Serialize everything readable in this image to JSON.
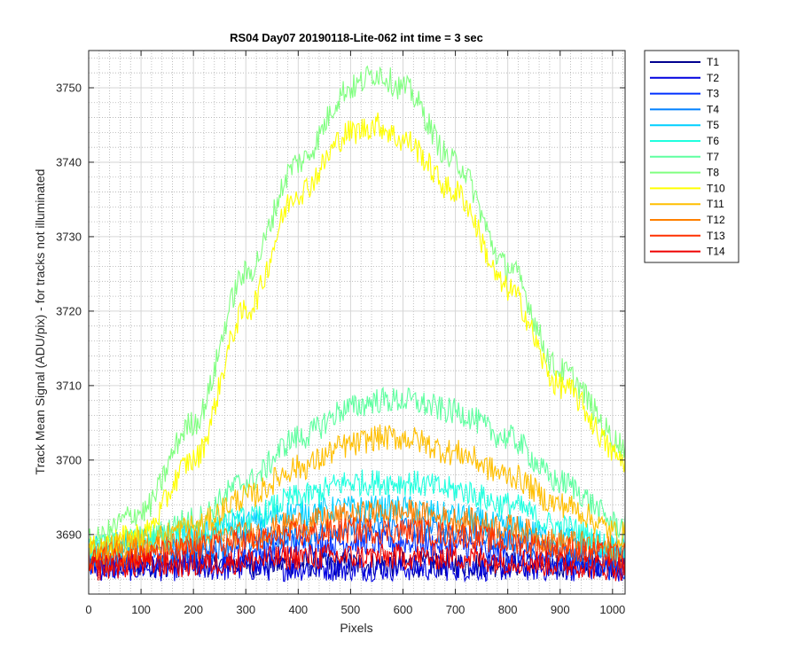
{
  "chart_data": {
    "type": "line",
    "title": "RS04 Day07 20190118-Lite-062 int time = 3 sec",
    "xlabel": "Pixels",
    "ylabel": "Track Mean Signal (ADU/pix) - for tracks not illuminated",
    "xlim": [
      0,
      1024
    ],
    "ylim": [
      3682,
      3755
    ],
    "xticks": [
      0,
      100,
      200,
      300,
      400,
      500,
      600,
      700,
      800,
      900,
      1000
    ],
    "yticks": [
      3690,
      3700,
      3710,
      3720,
      3730,
      3740,
      3750
    ],
    "grid": "major and minor (dotted)",
    "legend_position": "outside-right",
    "x": [
      0,
      100,
      200,
      300,
      400,
      500,
      550,
      600,
      700,
      800,
      900,
      1024
    ],
    "series": [
      {
        "name": "T1",
        "color": "#00008f",
        "noise": 1.8,
        "values": [
          3686,
          3686,
          3686,
          3686,
          3686,
          3686,
          3686,
          3686,
          3686,
          3686,
          3686,
          3686
        ]
      },
      {
        "name": "T2",
        "color": "#0000df",
        "noise": 1.8,
        "values": [
          3685.5,
          3685.5,
          3685.5,
          3685.5,
          3685.5,
          3685.5,
          3685.5,
          3685.5,
          3685.5,
          3685.5,
          3685.5,
          3685.5
        ]
      },
      {
        "name": "T3",
        "color": "#0030ff",
        "noise": 1.8,
        "values": [
          3686,
          3686,
          3686.5,
          3687.5,
          3688.5,
          3689,
          3689,
          3689,
          3688.5,
          3687.5,
          3686.5,
          3685.5
        ]
      },
      {
        "name": "T4",
        "color": "#0080ff",
        "noise": 1.8,
        "values": [
          3687,
          3687.5,
          3688,
          3689,
          3690,
          3691,
          3691,
          3691,
          3690.5,
          3689.5,
          3688,
          3687
        ]
      },
      {
        "name": "T5",
        "color": "#00cfff",
        "noise": 1.8,
        "values": [
          3688,
          3689,
          3690,
          3691.5,
          3693,
          3693.5,
          3693.5,
          3693.5,
          3692.5,
          3691,
          3689.5,
          3688
        ]
      },
      {
        "name": "T6",
        "color": "#20ffdf",
        "noise": 1.8,
        "values": [
          3688,
          3689,
          3690,
          3692,
          3695,
          3697,
          3697,
          3697,
          3696,
          3694,
          3691,
          3688
        ]
      },
      {
        "name": "T7",
        "color": "#5fffa0",
        "noise": 1.8,
        "values": [
          3688,
          3689.5,
          3692,
          3697,
          3703,
          3707,
          3708,
          3708,
          3706.5,
          3703,
          3697,
          3691
        ]
      },
      {
        "name": "T8",
        "color": "#80ff80",
        "noise": 1.8,
        "values": [
          3689,
          3693,
          3705,
          3725,
          3740,
          3750,
          3752,
          3750,
          3740,
          3726,
          3712,
          3702
        ]
      },
      {
        "name": "T10",
        "color": "#ffff00",
        "noise": 1.8,
        "values": [
          3688,
          3690,
          3700,
          3720,
          3736,
          3744,
          3745,
          3743,
          3736,
          3723,
          3710,
          3700
        ]
      },
      {
        "name": "T11",
        "color": "#ffbf00",
        "noise": 1.8,
        "values": [
          3688,
          3689,
          3691,
          3695,
          3699,
          3702,
          3703,
          3703,
          3701,
          3698,
          3694,
          3690
        ]
      },
      {
        "name": "T12",
        "color": "#ff8000",
        "noise": 1.8,
        "values": [
          3687,
          3688,
          3689,
          3690,
          3691.5,
          3692.5,
          3693,
          3693,
          3692,
          3691,
          3689,
          3688
        ]
      },
      {
        "name": "T13",
        "color": "#ff3000",
        "noise": 1.8,
        "values": [
          3686.5,
          3687,
          3688,
          3689,
          3690,
          3690.5,
          3690.5,
          3690.5,
          3690,
          3689,
          3688,
          3687
        ]
      },
      {
        "name": "T14",
        "color": "#ef0000",
        "noise": 1.8,
        "values": [
          3685.5,
          3686,
          3686,
          3686.5,
          3687,
          3687,
          3687,
          3687,
          3687,
          3686.5,
          3686,
          3685.5
        ]
      }
    ]
  }
}
